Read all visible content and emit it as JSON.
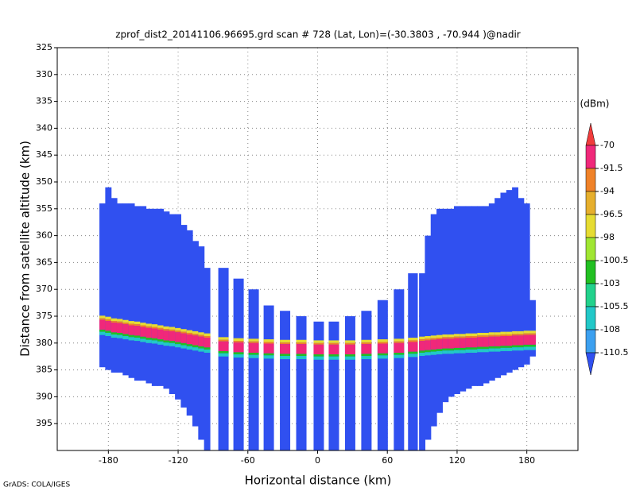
{
  "chart_data": {
    "type": "profile",
    "title": "zprof_dist2_20141106.96695.grd  scan # 728  (Lat, Lon)=(-30.3803 , -70.944 )@nadir",
    "x_label": "Horizontal distance (km)",
    "y_label": "Distance from satellite altitude (km)",
    "footer": "GrADS: COLA/IGES",
    "xlim": [
      -224,
      224
    ],
    "xticks": [
      -180,
      -120,
      -60,
      0,
      60,
      120,
      180
    ],
    "ylim": [
      325,
      400
    ],
    "y_inverted": true,
    "yticks": [
      325,
      330,
      335,
      340,
      345,
      350,
      355,
      360,
      365,
      370,
      375,
      380,
      385,
      390,
      395
    ],
    "grid": true,
    "columns": {
      "x": [
        -185,
        -180,
        -175,
        -170,
        -165,
        -160,
        -155,
        -150,
        -145,
        -140,
        -135,
        -130,
        -125,
        -120,
        -115,
        -110,
        -105,
        -100,
        -95,
        -81,
        -68,
        -55,
        -42,
        -28,
        -14,
        1,
        14,
        28,
        42,
        56,
        70,
        82,
        90,
        95,
        100,
        105,
        110,
        115,
        120,
        125,
        130,
        135,
        140,
        145,
        150,
        155,
        160,
        165,
        170,
        175,
        180,
        185
      ],
      "top": [
        354,
        351,
        353,
        354,
        354,
        354,
        354.5,
        354.5,
        355,
        355,
        355,
        355.5,
        356,
        356,
        358,
        359,
        361,
        362,
        366,
        366,
        368,
        370,
        373,
        374,
        375,
        376,
        376,
        375,
        374,
        372,
        370,
        367,
        367,
        360,
        356,
        355,
        355,
        355,
        354.5,
        354.5,
        354.5,
        354.5,
        354.5,
        354.5,
        354,
        353,
        352,
        351.5,
        351,
        353,
        354,
        372
      ],
      "bottom": [
        384.5,
        385,
        385.5,
        385.5,
        386,
        386.5,
        387,
        387,
        387.5,
        388,
        388,
        388.5,
        389.5,
        390.5,
        392,
        393.5,
        395.5,
        398,
        400,
        400,
        400,
        400,
        400,
        400,
        400,
        400,
        400,
        400,
        400,
        400,
        400,
        400,
        400,
        398,
        395.5,
        393,
        391,
        390,
        389.5,
        389,
        388.5,
        388,
        388,
        387.5,
        387,
        386.5,
        386,
        385.5,
        385,
        384.5,
        384,
        382.5
      ],
      "band": [
        376.5,
        376.7,
        377,
        377.1,
        377.3,
        377.5,
        377.6,
        377.8,
        378,
        378.1,
        378.3,
        378.5,
        378.6,
        378.8,
        379,
        379.2,
        379.4,
        379.6,
        379.8,
        380.5,
        380.7,
        380.8,
        380.9,
        381,
        381,
        381.1,
        381.1,
        381.1,
        381,
        380.9,
        380.8,
        380.6,
        380.4,
        380.3,
        380.2,
        380.1,
        380,
        380,
        379.9,
        379.9,
        379.8,
        379.8,
        379.7,
        379.7,
        379.6,
        379.6,
        379.5,
        379.5,
        379.4,
        379.4,
        379.3,
        379.3
      ]
    },
    "body_dbm": -112,
    "band_dbm": -85,
    "colorbar": {
      "unit": "(dBm)",
      "levels": [
        -70,
        -91.5,
        -94,
        -96.5,
        -98,
        -100.5,
        -103,
        -105.5,
        -108,
        -110.5
      ],
      "colors": [
        "#f03c3c",
        "#f0287a",
        "#f08228",
        "#e6af2d",
        "#e6dc32",
        "#a0e632",
        "#22c022",
        "#22d28c",
        "#22c8c8",
        "#3ca0f0",
        "#3050f0"
      ]
    }
  }
}
